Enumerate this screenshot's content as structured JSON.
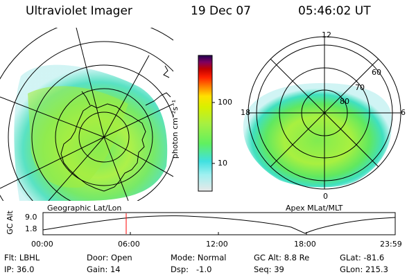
{
  "header": {
    "instrument": "Ultraviolet Imager",
    "date": "19 Dec 07",
    "time": "05:46:02 UT"
  },
  "left_panel": {
    "caption": "Geographic Lat/Lon"
  },
  "right_panel": {
    "caption": "Apex MLat/MLT",
    "mlt_labels": {
      "top": "12",
      "left": "18",
      "right": "6",
      "bottom": "0"
    },
    "lat_labels": [
      "60",
      "70",
      "80"
    ]
  },
  "colorbar": {
    "unit_label": "photon cm⁻²s⁻¹",
    "ticks": [
      "100",
      "10"
    ],
    "colors": [
      "#e8e8e8",
      "#a0f0f0",
      "#40e0e0",
      "#60f060",
      "#a8f040",
      "#d8f000",
      "#ffe000",
      "#ff9000",
      "#ff2000",
      "#c00000",
      "#800060",
      "#200050"
    ]
  },
  "altitude_plot": {
    "axis_label": "GC Alt",
    "y_ticks": [
      "9.0",
      "1.8"
    ],
    "x_ticks": [
      "00:00",
      "06:00",
      "12:00",
      "18:00",
      "23:59"
    ],
    "current_marker_color": "#ff0000"
  },
  "footer": {
    "row1": {
      "flt": "Flt: LBHL",
      "door": "Door: Open",
      "mode": "Mode: Normal",
      "gc_alt": "GC Alt: 8.8 Re",
      "glat": "GLat: -81.6"
    },
    "row2": {
      "ip": "IP: 36.0",
      "gain": "Gain: 14",
      "dsp": "Dsp:   -1.0",
      "seq": "Seq: 39",
      "glon": "GLon: 215.3"
    }
  }
}
